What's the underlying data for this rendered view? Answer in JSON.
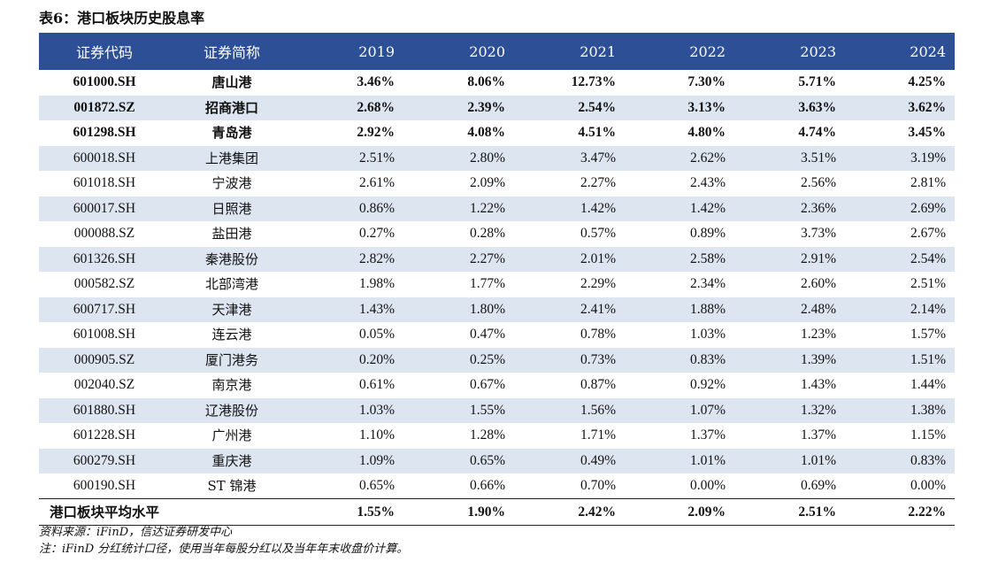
{
  "title": "表6：港口板块历史股息率",
  "headers": [
    "证券代码",
    "证券简称",
    "2019",
    "2020",
    "2021",
    "2022",
    "2023",
    "2024"
  ],
  "rows": [
    {
      "code": "601000.SH",
      "name": "唐山港",
      "values": [
        "3.46%",
        "8.06%",
        "12.73%",
        "7.30%",
        "5.71%",
        "4.25%"
      ],
      "bold": true
    },
    {
      "code": "001872.SZ",
      "name": "招商港口",
      "values": [
        "2.68%",
        "2.39%",
        "2.54%",
        "3.13%",
        "3.63%",
        "3.62%"
      ],
      "bold": true
    },
    {
      "code": "601298.SH",
      "name": "青岛港",
      "values": [
        "2.92%",
        "4.08%",
        "4.51%",
        "4.80%",
        "4.74%",
        "3.45%"
      ],
      "bold": true
    },
    {
      "code": "600018.SH",
      "name": "上港集团",
      "values": [
        "2.51%",
        "2.80%",
        "3.47%",
        "2.62%",
        "3.51%",
        "3.19%"
      ],
      "bold": false
    },
    {
      "code": "601018.SH",
      "name": "宁波港",
      "values": [
        "2.61%",
        "2.09%",
        "2.27%",
        "2.43%",
        "2.56%",
        "2.81%"
      ],
      "bold": false
    },
    {
      "code": "600017.SH",
      "name": "日照港",
      "values": [
        "0.86%",
        "1.22%",
        "1.42%",
        "1.42%",
        "2.36%",
        "2.69%"
      ],
      "bold": false
    },
    {
      "code": "000088.SZ",
      "name": "盐田港",
      "values": [
        "0.27%",
        "0.28%",
        "0.57%",
        "0.89%",
        "3.73%",
        "2.67%"
      ],
      "bold": false
    },
    {
      "code": "601326.SH",
      "name": "秦港股份",
      "values": [
        "2.82%",
        "2.27%",
        "2.01%",
        "2.58%",
        "2.91%",
        "2.54%"
      ],
      "bold": false
    },
    {
      "code": "000582.SZ",
      "name": "北部湾港",
      "values": [
        "1.98%",
        "1.77%",
        "2.29%",
        "2.34%",
        "2.60%",
        "2.51%"
      ],
      "bold": false
    },
    {
      "code": "600717.SH",
      "name": "天津港",
      "values": [
        "1.43%",
        "1.80%",
        "2.41%",
        "1.88%",
        "2.48%",
        "2.14%"
      ],
      "bold": false
    },
    {
      "code": "601008.SH",
      "name": "连云港",
      "values": [
        "0.05%",
        "0.47%",
        "0.78%",
        "1.03%",
        "1.23%",
        "1.57%"
      ],
      "bold": false
    },
    {
      "code": "000905.SZ",
      "name": "厦门港务",
      "values": [
        "0.20%",
        "0.25%",
        "0.73%",
        "0.83%",
        "1.39%",
        "1.51%"
      ],
      "bold": false
    },
    {
      "code": "002040.SZ",
      "name": "南京港",
      "values": [
        "0.61%",
        "0.67%",
        "0.87%",
        "0.92%",
        "1.43%",
        "1.44%"
      ],
      "bold": false
    },
    {
      "code": "601880.SH",
      "name": "辽港股份",
      "values": [
        "1.03%",
        "1.55%",
        "1.56%",
        "1.07%",
        "1.32%",
        "1.38%"
      ],
      "bold": false
    },
    {
      "code": "601228.SH",
      "name": "广州港",
      "values": [
        "1.10%",
        "1.28%",
        "1.71%",
        "1.37%",
        "1.37%",
        "1.15%"
      ],
      "bold": false
    },
    {
      "code": "600279.SH",
      "name": "重庆港",
      "values": [
        "1.09%",
        "0.65%",
        "0.49%",
        "1.01%",
        "1.01%",
        "0.83%"
      ],
      "bold": false
    },
    {
      "code": "600190.SH",
      "name": "ST 锦港",
      "values": [
        "0.65%",
        "0.66%",
        "0.70%",
        "0.00%",
        "0.69%",
        "0.00%"
      ],
      "bold": false
    }
  ],
  "average": {
    "label": "港口板块平均水平",
    "values": [
      "1.55%",
      "1.90%",
      "2.42%",
      "2.09%",
      "2.51%",
      "2.22%"
    ]
  },
  "colors": {
    "header_bg": "#2d4f96",
    "alt_row_bg": "#dde5f1"
  },
  "notes": {
    "source": "资料来源：iFinD，信达证券研发中心",
    "note": "注：iFinD 分红统计口径，使用当年每股分红以及当年年末收盘价计算。"
  }
}
